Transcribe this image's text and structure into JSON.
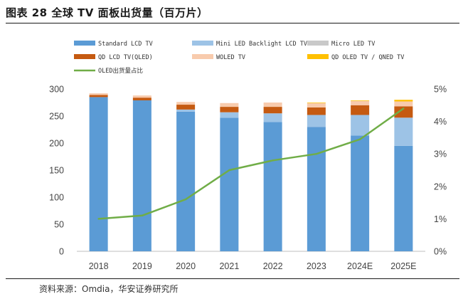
{
  "figure": {
    "title": "图表 28 全球 TV 面板出货量（百万片）",
    "source": "资料来源：Omdia，华安证券研究所"
  },
  "chart_data": {
    "type": "bar",
    "stacked": true,
    "categories": [
      "2018",
      "2019",
      "2020",
      "2021",
      "2022",
      "2023",
      "2024E",
      "2025E"
    ],
    "series": [
      {
        "name": "Standard LCD TV",
        "color": "#5b9bd5",
        "values": [
          285,
          279,
          258,
          247,
          239,
          230,
          214,
          195
        ]
      },
      {
        "name": "Mini LED Backlight LCD TV",
        "color": "#9dc3e6",
        "values": [
          0,
          0,
          4,
          10,
          16,
          22,
          38,
          52
        ]
      },
      {
        "name": "Micro LED TV",
        "color": "#c9c9c9",
        "values": [
          0,
          0,
          0,
          0,
          0,
          0,
          0,
          0
        ]
      },
      {
        "name": "QD LCD TV(QLED)",
        "color": "#c55a11",
        "values": [
          4,
          5,
          9,
          10,
          12,
          14,
          18,
          21
        ]
      },
      {
        "name": "WOLED TV",
        "color": "#f8cbad",
        "values": [
          3,
          4,
          5,
          7,
          8,
          8,
          8,
          9
        ]
      },
      {
        "name": "QD OLED TV / QNED TV",
        "color": "#ffc000",
        "values": [
          0,
          0,
          0,
          0,
          0,
          1,
          1,
          3
        ]
      }
    ],
    "line": {
      "name": "OLED出货量占比",
      "color": "#70ad47",
      "axis": "right",
      "values": [
        1.0,
        1.1,
        1.6,
        2.5,
        2.8,
        3.0,
        3.45,
        4.4
      ]
    },
    "y_left": {
      "min": 0,
      "max": 300,
      "ticks": [
        "0",
        "50",
        "100",
        "150",
        "200",
        "250",
        "300"
      ]
    },
    "y_right": {
      "min": 0,
      "max": 5,
      "ticks": [
        "0%",
        "1%",
        "2%",
        "3%",
        "4%",
        "5%"
      ]
    },
    "legend_position": "top",
    "grid": false
  }
}
